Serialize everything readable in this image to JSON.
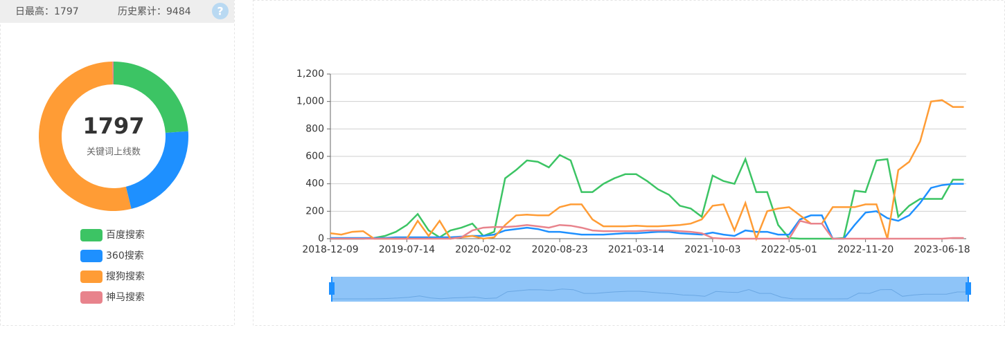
{
  "header": {
    "daily_max": "日最高：1797",
    "total": "历史累计：9484",
    "help": "?"
  },
  "chart_data": [
    {
      "type": "pie",
      "center_label": "1797",
      "center_caption": "关键词上线数",
      "categories": [
        "百度搜索",
        "360搜索",
        "搜狗搜索",
        "神马搜索"
      ],
      "values": [
        430,
        400,
        962,
        5
      ],
      "colors": [
        "#3cc464",
        "#1e90ff",
        "#ff9c35",
        "#e8838c"
      ]
    },
    {
      "type": "line",
      "categories": [
        "2018-12-09",
        null,
        null,
        null,
        null,
        null,
        null,
        "2019-07-14",
        null,
        null,
        null,
        null,
        null,
        null,
        "2020-02-02",
        null,
        null,
        null,
        null,
        null,
        null,
        "2020-08-23",
        null,
        null,
        null,
        null,
        null,
        null,
        "2021-03-14",
        null,
        null,
        null,
        null,
        null,
        null,
        "2021-10-03",
        null,
        null,
        null,
        null,
        null,
        null,
        "2022-05-01",
        null,
        null,
        null,
        null,
        null,
        null,
        "2022-11-20",
        null,
        null,
        null,
        null,
        null,
        null,
        "2023-06-18",
        null,
        null
      ],
      "series": [
        {
          "name": "百度搜索",
          "color": "#3cc464",
          "values": [
            0,
            0,
            0,
            0,
            5,
            20,
            50,
            100,
            180,
            60,
            10,
            60,
            80,
            110,
            20,
            50,
            440,
            500,
            570,
            560,
            520,
            610,
            570,
            340,
            340,
            400,
            440,
            470,
            470,
            420,
            360,
            320,
            240,
            220,
            160,
            460,
            420,
            400,
            580,
            340,
            340,
            100,
            5,
            0,
            0,
            0,
            0,
            5,
            350,
            340,
            570,
            580,
            160,
            240,
            290,
            290,
            290,
            430,
            430
          ]
        },
        {
          "name": "360搜索",
          "color": "#1e90ff",
          "values": [
            5,
            5,
            5,
            5,
            5,
            5,
            10,
            10,
            10,
            10,
            10,
            10,
            15,
            20,
            20,
            30,
            60,
            70,
            80,
            70,
            50,
            50,
            40,
            30,
            30,
            30,
            35,
            40,
            40,
            45,
            50,
            50,
            40,
            35,
            30,
            45,
            30,
            20,
            60,
            50,
            50,
            30,
            30,
            140,
            170,
            170,
            0,
            0,
            100,
            190,
            200,
            150,
            130,
            170,
            260,
            370,
            390,
            400,
            400
          ]
        },
        {
          "name": "搜狗搜索",
          "color": "#ff9c35",
          "values": [
            40,
            30,
            50,
            55,
            0,
            0,
            0,
            0,
            130,
            20,
            130,
            0,
            10,
            20,
            0,
            10,
            100,
            170,
            175,
            170,
            170,
            230,
            250,
            250,
            140,
            90,
            90,
            90,
            95,
            90,
            90,
            95,
            100,
            110,
            140,
            240,
            250,
            60,
            260,
            0,
            200,
            220,
            230,
            170,
            110,
            110,
            230,
            230,
            230,
            250,
            250,
            0,
            500,
            560,
            710,
            1000,
            1010,
            960,
            960
          ]
        },
        {
          "name": "神马搜索",
          "color": "#e8838c",
          "values": [
            0,
            0,
            0,
            0,
            0,
            0,
            0,
            0,
            0,
            0,
            0,
            0,
            10,
            60,
            80,
            85,
            85,
            90,
            100,
            90,
            80,
            100,
            95,
            80,
            60,
            55,
            55,
            55,
            55,
            60,
            60,
            60,
            55,
            50,
            40,
            5,
            0,
            0,
            0,
            0,
            0,
            0,
            0,
            130,
            110,
            110,
            0,
            0,
            0,
            0,
            0,
            0,
            0,
            0,
            0,
            0,
            0,
            5,
            5
          ]
        }
      ],
      "ylim": [
        0,
        1200
      ],
      "yticks": [
        0,
        200,
        400,
        600,
        800,
        {
          "value": 1000,
          "label": "1,000"
        },
        {
          "value": 1200,
          "label": "1,200"
        }
      ],
      "grid": true
    }
  ]
}
